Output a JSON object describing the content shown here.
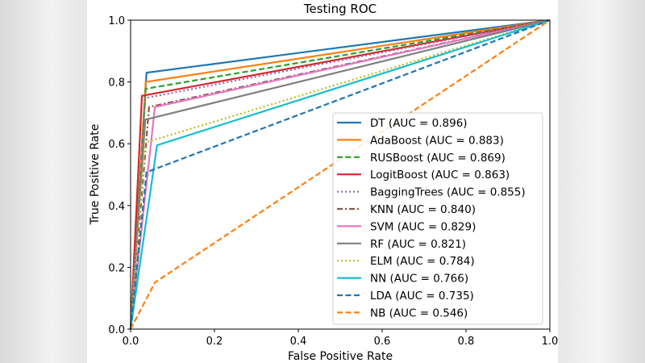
{
  "chart_data": {
    "type": "line",
    "title": "Testing ROC",
    "xlabel": "False Positive Rate",
    "ylabel": "True Positive Rate",
    "xlim": [
      0.0,
      1.0
    ],
    "ylim": [
      0.0,
      1.0
    ],
    "xticks": [
      "0.0",
      "0.2",
      "0.4",
      "0.6",
      "0.8",
      "1.0"
    ],
    "yticks": [
      "0.0",
      "0.2",
      "0.4",
      "0.6",
      "0.8",
      "1.0"
    ],
    "grid": false,
    "legend_position": "lower-right",
    "series": [
      {
        "name": "DT (AUC = 0.896)",
        "color": "#1f77b4",
        "style": "solid",
        "x": [
          0,
          0.038,
          1
        ],
        "y": [
          0,
          0.83,
          1
        ]
      },
      {
        "name": "AdaBoost (AUC = 0.883)",
        "color": "#ff7f0e",
        "style": "solid",
        "x": [
          0,
          0.036,
          1
        ],
        "y": [
          0,
          0.8,
          1
        ]
      },
      {
        "name": "RUSBoost (AUC = 0.869)",
        "color": "#2ca02c",
        "style": "dashed",
        "x": [
          0,
          0.036,
          1
        ],
        "y": [
          0,
          0.778,
          1
        ]
      },
      {
        "name": "LogitBoost (AUC = 0.863)",
        "color": "#d62728",
        "style": "solid",
        "x": [
          0,
          0.027,
          1
        ],
        "y": [
          0,
          0.755,
          1
        ]
      },
      {
        "name": "BaggingTrees (AUC = 0.855)",
        "color": "#9467bd",
        "style": "dotted",
        "x": [
          0,
          0.035,
          1
        ],
        "y": [
          0,
          0.748,
          1
        ]
      },
      {
        "name": "KNN (AUC = 0.840)",
        "color": "#8c564b",
        "style": "dashdot",
        "x": [
          0,
          0.044,
          1
        ],
        "y": [
          0,
          0.719,
          1
        ]
      },
      {
        "name": "SVM (AUC = 0.829)",
        "color": "#e377c2",
        "style": "solid",
        "x": [
          0,
          0.058,
          1
        ],
        "y": [
          0,
          0.719,
          1
        ]
      },
      {
        "name": "RF (AUC = 0.821)",
        "color": "#7f7f7f",
        "style": "solid",
        "x": [
          0,
          0.035,
          1
        ],
        "y": [
          0,
          0.678,
          1
        ]
      },
      {
        "name": "ELM (AUC = 0.784)",
        "color": "#bcbd22",
        "style": "dotted",
        "x": [
          0,
          0.035,
          1
        ],
        "y": [
          0,
          0.604,
          1
        ]
      },
      {
        "name": "NN (AUC = 0.766)",
        "color": "#17becf",
        "style": "solid",
        "x": [
          0,
          0.063,
          1
        ],
        "y": [
          0,
          0.595,
          1
        ]
      },
      {
        "name": "LDA (AUC = 0.735)",
        "color": "#1f77b4",
        "style": "dashed",
        "x": [
          0,
          0.038,
          1
        ],
        "y": [
          0,
          0.508,
          1
        ]
      },
      {
        "name": "NB (AUC = 0.546)",
        "color": "#ff7f0e",
        "style": "dashed",
        "x": [
          0,
          0.058,
          1
        ],
        "y": [
          0,
          0.151,
          1
        ]
      }
    ]
  }
}
